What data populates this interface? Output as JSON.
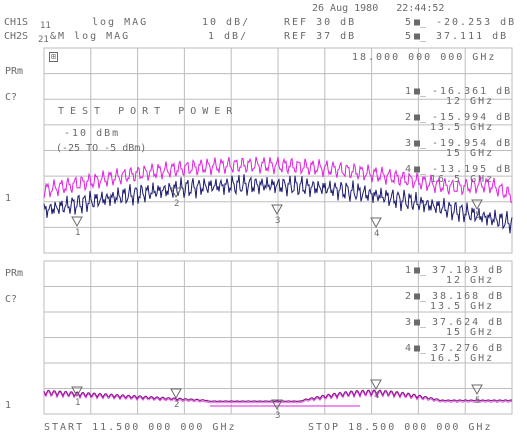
{
  "header": {
    "timestamp": "26 Aug 1980   22:44:52",
    "ch1_prefix": "CH1S",
    "ch1_param": "11",
    "ch1_format": "log MAG",
    "ch1_scale": "10 dB/",
    "ch1_ref": "REF 30 dB",
    "ch1_marker_num": "5",
    "ch1_marker_val": "-20.253 dB",
    "ch2_prefix": "CH2S",
    "ch2_param": "21",
    "ch2_format": "&M log MAG",
    "ch2_scale": "1 dB/",
    "ch2_ref": "REF 37 dB",
    "ch2_marker_num": "5",
    "ch2_marker_val": "37.111 dB"
  },
  "channel1": {
    "label_prm": "PRm",
    "label_c": "C?",
    "ref_indicator": "1",
    "box_symbol": "⊞",
    "active_freq": "18.000 000 000 GHz",
    "title_line": "TEST PORT POWER",
    "power_value": "-10 dBm",
    "power_range": "(-25 TO -5 dBm)",
    "markers": [
      {
        "num": "1",
        "val": "-16.361 dB",
        "freq": "12 GHz"
      },
      {
        "num": "2",
        "val": "-15.994 dB",
        "freq": "13.5 GHz"
      },
      {
        "num": "3",
        "val": "-19.954 dB",
        "freq": "15 GHz"
      },
      {
        "num": "4",
        "val": "-13.195 dB",
        "freq": "16.5 GHz"
      }
    ]
  },
  "channel2": {
    "label_prm": "PRm",
    "label_c": "C?",
    "ref_indicator": "1",
    "markers": [
      {
        "num": "1",
        "val": "37.103 dB",
        "freq": "12 GHz"
      },
      {
        "num": "2",
        "val": "38.168 dB",
        "freq": "13.5 GHz"
      },
      {
        "num": "3",
        "val": "37.624 dB",
        "freq": "15 GHz"
      },
      {
        "num": "4",
        "val": "37.276 dB",
        "freq": "16.5 GHz"
      }
    ]
  },
  "footer": {
    "start": "START 11.500 000 000 GHz",
    "stop": "STOP 18.500 000 000 GHz"
  },
  "trace_markers": [
    "1",
    "2",
    "3",
    "4",
    "5"
  ],
  "colors": {
    "grid": "#bdbdbd",
    "text": "#6a6a6a",
    "trace_navy": "#1a1a6e",
    "trace_magenta": "#e020e0",
    "trace_purple": "#8a1a8a"
  }
}
